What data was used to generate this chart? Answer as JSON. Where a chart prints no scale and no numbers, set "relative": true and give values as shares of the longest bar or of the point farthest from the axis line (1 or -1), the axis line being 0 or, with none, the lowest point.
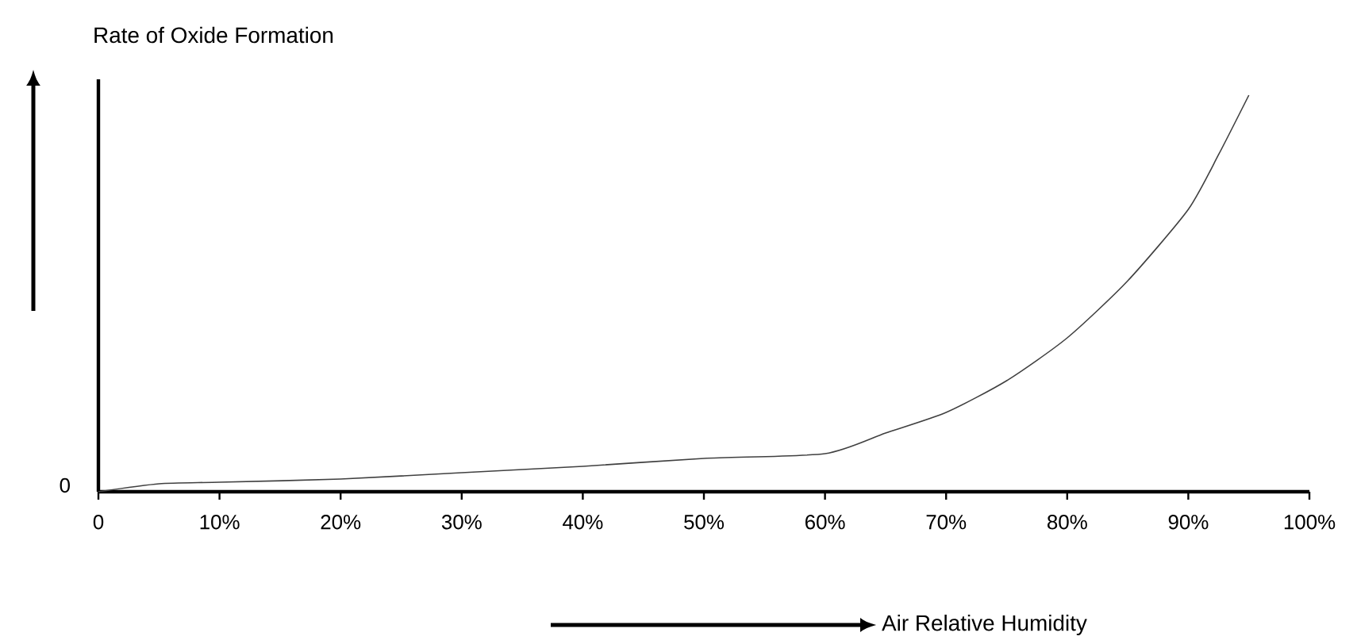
{
  "chart_data": {
    "type": "line",
    "relative": true,
    "xlabel": "Air Relative Humidity",
    "ylabel": "Rate of Oxide Formation",
    "annotations": [
      "0"
    ],
    "xlim": [
      0,
      100
    ],
    "xticks": [
      {
        "value": 0,
        "label": "0"
      },
      {
        "value": 10,
        "label": "10%"
      },
      {
        "value": 20,
        "label": "20%"
      },
      {
        "value": 30,
        "label": "30%"
      },
      {
        "value": 40,
        "label": "40%"
      },
      {
        "value": 50,
        "label": "50%"
      },
      {
        "value": 60,
        "label": "60%"
      },
      {
        "value": 70,
        "label": "70%"
      },
      {
        "value": 80,
        "label": "80%"
      },
      {
        "value": 90,
        "label": "90%"
      },
      {
        "value": 100,
        "label": "100%"
      }
    ],
    "marker": "none",
    "line_style": "solid",
    "series": [
      {
        "color": "#404040",
        "x": [
          0,
          5,
          10,
          20,
          30,
          40,
          50,
          60,
          65,
          70,
          75,
          80,
          85,
          90,
          92.5,
          95
        ],
        "values": [
          0,
          0.02,
          0.024,
          0.032,
          0.048,
          0.064,
          0.084,
          0.096,
          0.148,
          0.2,
          0.28,
          0.388,
          0.532,
          0.712,
          0.85,
          1
        ]
      }
    ]
  }
}
